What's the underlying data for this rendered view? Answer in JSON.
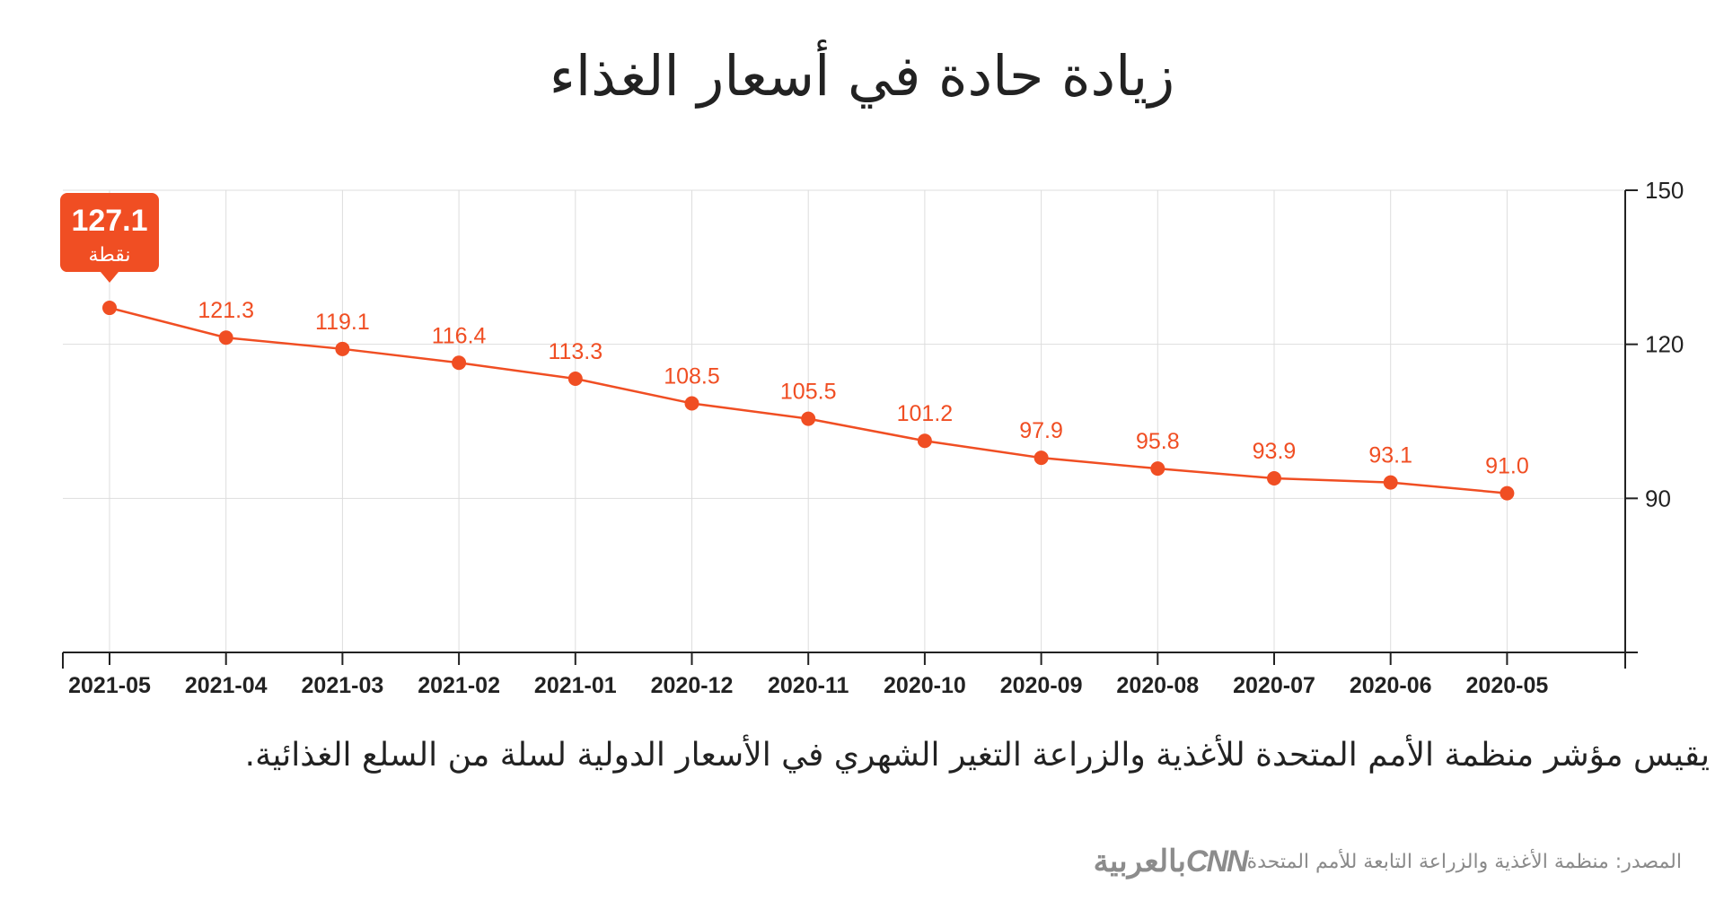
{
  "title": "زيادة حادة في أسعار الغذاء",
  "caption": "يقيس مؤشر منظمة الأمم المتحدة للأغذية والزراعة التغير الشهري في الأسعار الدولية لسلة من السلع الغذائية.",
  "source": "المصدر: منظمة الأغذية والزراعة التابعة للأمم المتحدة",
  "logo": {
    "brand": "CNN",
    "arabic": "بالعربية"
  },
  "colors": {
    "line": "#f04e23",
    "grid": "#dddddd",
    "axis": "#222222",
    "text": "#222222"
  },
  "chart_data": {
    "type": "line",
    "categories": [
      "2021-05",
      "2021-04",
      "2021-03",
      "2021-02",
      "2021-01",
      "2020-12",
      "2020-11",
      "2020-10",
      "2020-09",
      "2020-08",
      "2020-07",
      "2020-06",
      "2020-05"
    ],
    "values": [
      127.1,
      121.3,
      119.1,
      116.4,
      113.3,
      108.5,
      105.5,
      101.2,
      97.9,
      95.8,
      93.9,
      93.1,
      91.0
    ],
    "value_labels": [
      "127.1",
      "121.3",
      "119.1",
      "116.4",
      "113.3",
      "108.5",
      "105.5",
      "101.2",
      "97.9",
      "95.8",
      "93.9",
      "93.1",
      "91.0"
    ],
    "yticks": [
      90,
      120,
      150
    ],
    "ylim": [
      60,
      150
    ],
    "y_axis_side": "right",
    "highlight": {
      "index": 0,
      "value": "127.1",
      "unit": "نقطة"
    },
    "xlabel": "",
    "ylabel": "",
    "grid": true
  }
}
